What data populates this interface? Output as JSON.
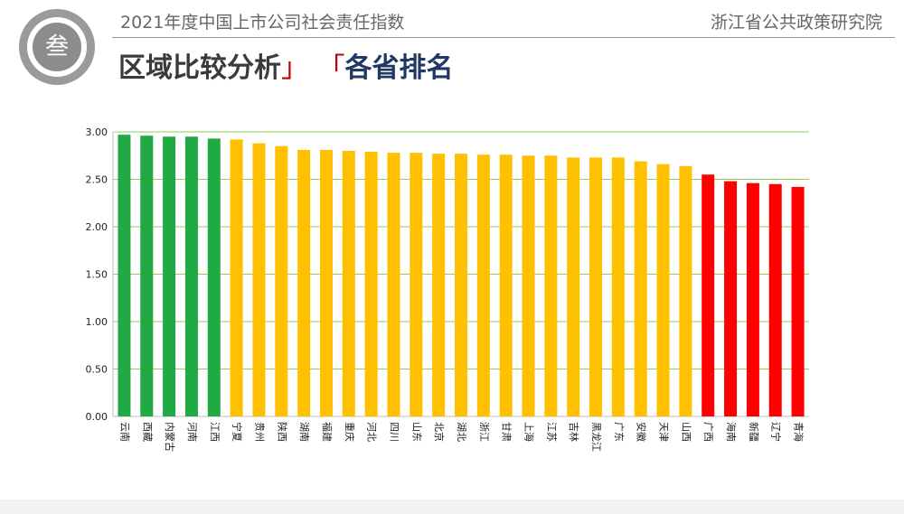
{
  "header": {
    "badge": "叁",
    "title": "2021年度中国上市公司社会责任指数",
    "org": "浙江省公共政策研究院",
    "section_part1": "区域比较分析",
    "bracket_close": "」",
    "bracket_open": "「",
    "section_part2": "各省排名"
  },
  "colors": {
    "top": "#21a944",
    "middle": "#ffc000",
    "bottom": "#ff0000",
    "grid": "#92d050"
  },
  "chart_data": {
    "type": "bar",
    "title": "",
    "xlabel": "",
    "ylabel": "",
    "ylim": [
      0,
      3
    ],
    "yticks": [
      "0.00",
      "0.50",
      "1.00",
      "1.50",
      "2.00",
      "2.50",
      "3.00"
    ],
    "grid": true,
    "categories": [
      "云南",
      "西藏",
      "内蒙古",
      "河南",
      "江西",
      "宁夏",
      "贵州",
      "陕西",
      "湖南",
      "福建",
      "重庆",
      "河北",
      "四川",
      "山东",
      "北京",
      "湖北",
      "浙江",
      "甘肃",
      "上海",
      "江苏",
      "吉林",
      "黑龙江",
      "广东",
      "安徽",
      "天津",
      "山西",
      "广西",
      "海南",
      "新疆",
      "辽宁",
      "青海"
    ],
    "values": [
      2.97,
      2.96,
      2.95,
      2.95,
      2.93,
      2.92,
      2.88,
      2.85,
      2.81,
      2.81,
      2.8,
      2.79,
      2.78,
      2.78,
      2.77,
      2.77,
      2.76,
      2.76,
      2.75,
      2.75,
      2.73,
      2.73,
      2.73,
      2.69,
      2.66,
      2.64,
      2.55,
      2.48,
      2.46,
      2.45,
      2.42
    ],
    "groups": [
      "top",
      "top",
      "top",
      "top",
      "top",
      "middle",
      "middle",
      "middle",
      "middle",
      "middle",
      "middle",
      "middle",
      "middle",
      "middle",
      "middle",
      "middle",
      "middle",
      "middle",
      "middle",
      "middle",
      "middle",
      "middle",
      "middle",
      "middle",
      "middle",
      "middle",
      "bottom",
      "bottom",
      "bottom",
      "bottom",
      "bottom"
    ]
  }
}
